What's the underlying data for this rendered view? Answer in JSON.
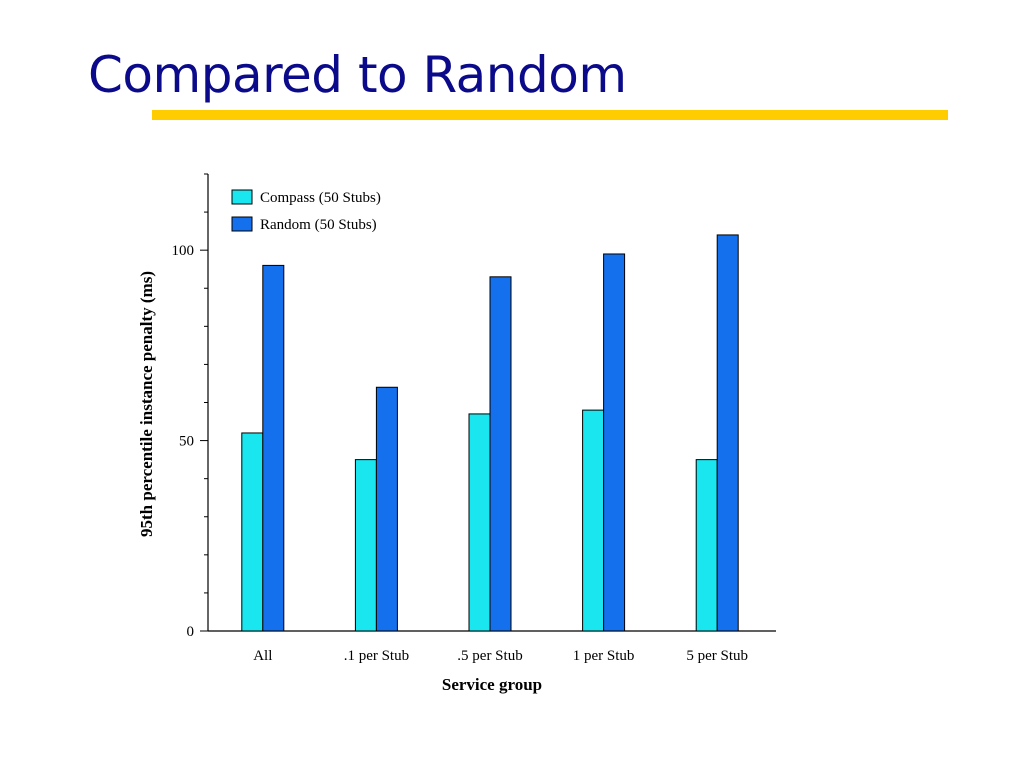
{
  "slide": {
    "title": "Compared to Random"
  },
  "colors": {
    "title": "#0a0a8a",
    "rule": "#ffcc00"
  },
  "chart_data": {
    "type": "bar",
    "title": "",
    "xlabel": "Service group",
    "ylabel": "95th percentile instance penalty (ms)",
    "categories": [
      "All",
      ".1 per Stub",
      ".5 per Stub",
      "1 per Stub",
      "5 per Stub"
    ],
    "series": [
      {
        "name": "Compass (50 Stubs)",
        "color": "#19e6ee",
        "values": [
          52,
          45,
          57,
          58,
          45
        ]
      },
      {
        "name": "Random (50 Stubs)",
        "color": "#1470ec",
        "values": [
          96,
          64,
          93,
          99,
          104
        ]
      }
    ],
    "ylim": [
      0,
      120
    ],
    "yticks": [
      0,
      50,
      100
    ],
    "legend": "top-left",
    "grid": false
  }
}
